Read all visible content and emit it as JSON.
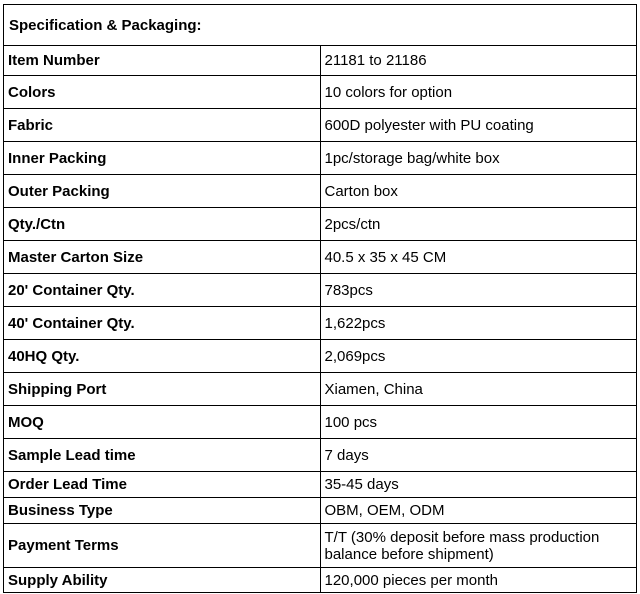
{
  "title": "Specification & Packaging:",
  "rows": [
    {
      "label": "Item Number",
      "value": "21181 to 21186"
    },
    {
      "label": "Colors",
      "value": "10 colors for option"
    },
    {
      "label": "Fabric",
      "value": "600D polyester with PU coating"
    },
    {
      "label": "Inner Packing",
      "value": "1pc/storage bag/white box"
    },
    {
      "label": "Outer Packing",
      "value": "Carton box"
    },
    {
      "label": "Qty./Ctn",
      "value": "2pcs/ctn"
    },
    {
      "label": "Master Carton Size",
      "value": "40.5 x 35 x 45 CM"
    },
    {
      "label": "20' Container Qty.",
      "value": "783pcs"
    },
    {
      "label": "40' Container Qty.",
      "value": "1,622pcs"
    },
    {
      "label": "40HQ Qty.",
      "value": "2,069pcs"
    },
    {
      "label": "Shipping Port",
      "value": "Xiamen, China"
    },
    {
      "label": "MOQ",
      "value": "100 pcs"
    },
    {
      "label": "Sample Lead time",
      "value": "7 days"
    },
    {
      "label": "Order Lead Time",
      "value": "35-45 days"
    },
    {
      "label": "Business Type",
      "value": "OBM, OEM, ODM"
    },
    {
      "label": "Payment Terms",
      "value": "T/T (30% deposit before mass production balance before shipment)"
    },
    {
      "label": "Supply Ability",
      "value": "120,000 pieces per month"
    }
  ]
}
